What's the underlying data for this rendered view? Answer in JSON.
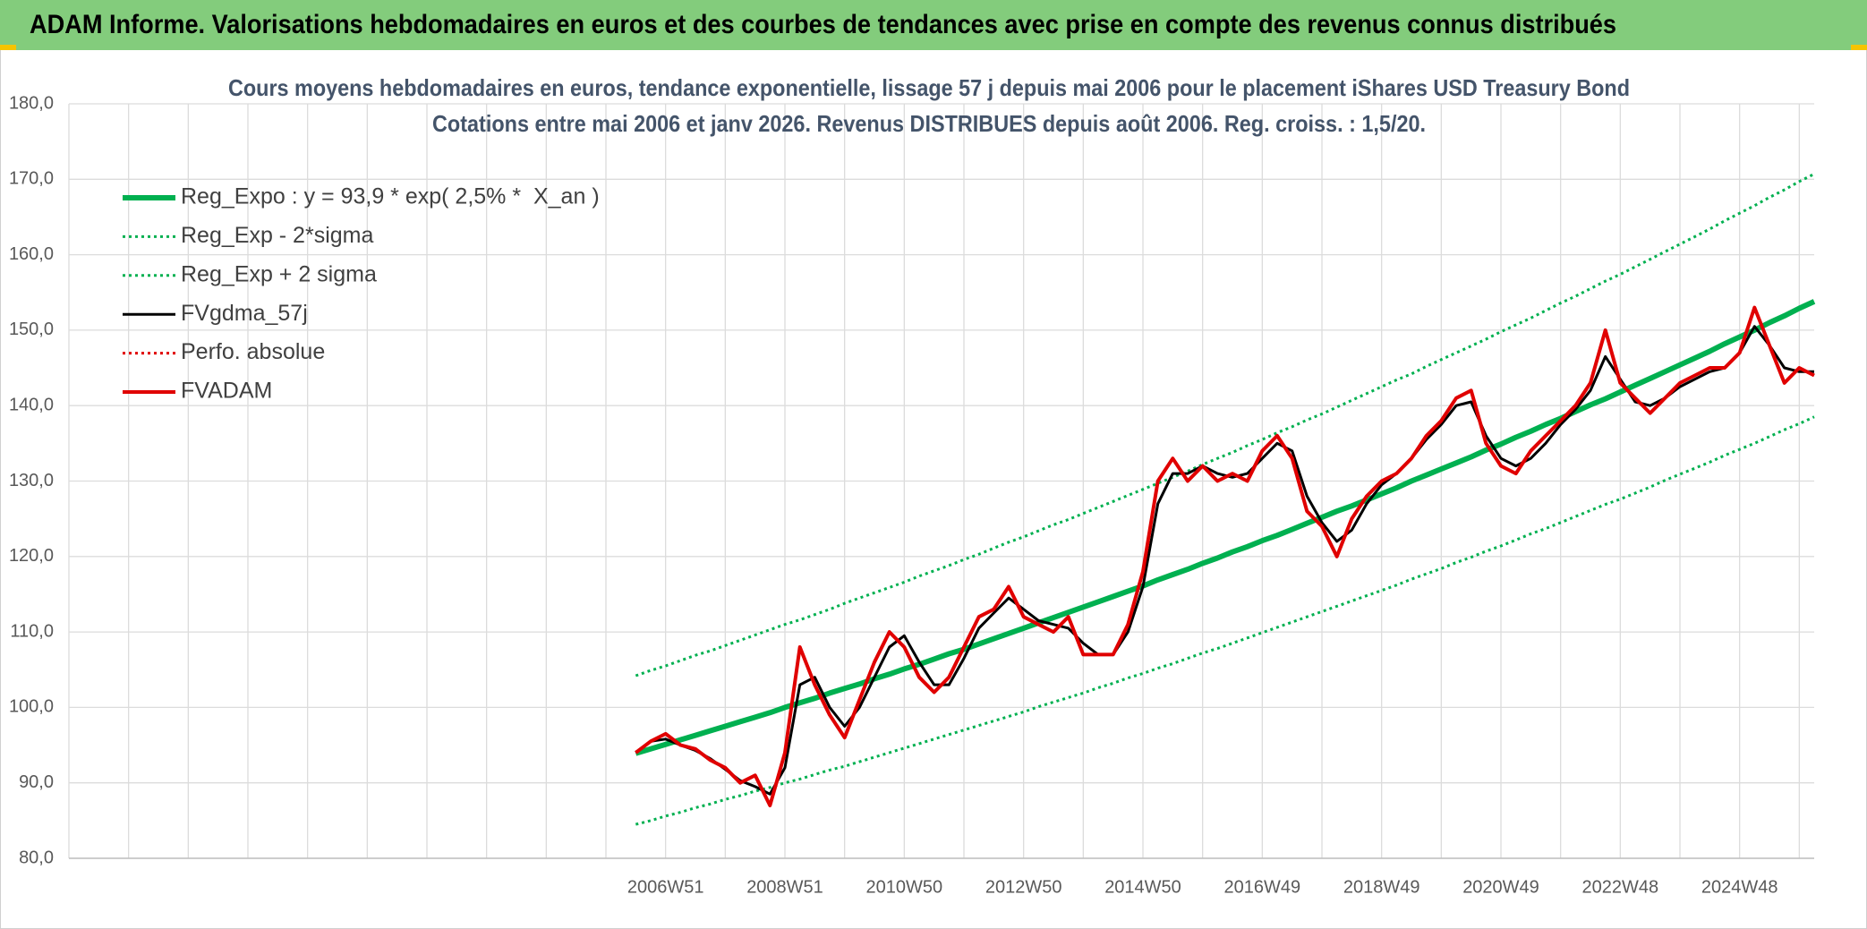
{
  "header": {
    "title": "ADAM Informe. Valorisations hebdomadaires en euros et des courbes de tendances avec prise en compte des revenus connus distribués"
  },
  "chart_data": {
    "type": "line",
    "title": "Cours moyens hebdomadaires en euros, tendance exponentielle, lissage 57 j depuis mai 2006 pour le placement iShares USD Treasury Bond",
    "subtitle": "Cotations entre mai 2006 et janv 2026. Revenus DISTRIBUES depuis août 2006. Reg. croiss. : 1,5/20.",
    "categories": [
      null,
      null,
      null,
      null,
      null,
      null,
      null,
      null,
      null,
      null,
      null,
      null,
      null,
      null,
      null,
      null,
      null,
      null,
      null,
      null,
      null,
      null,
      null,
      null,
      null,
      null,
      null,
      null,
      null,
      null,
      null,
      null,
      null,
      null,
      null,
      null,
      null,
      null,
      null,
      null,
      "2006W51",
      null,
      null,
      null,
      null,
      null,
      null,
      null,
      "2008W51",
      null,
      null,
      null,
      null,
      null,
      null,
      null,
      "2010W50",
      null,
      null,
      null,
      null,
      null,
      null,
      null,
      "2012W50",
      null,
      null,
      null,
      null,
      null,
      null,
      null,
      "2014W50",
      null,
      null,
      null,
      null,
      null,
      null,
      null,
      "2016W49",
      null,
      null,
      null,
      null,
      null,
      null,
      null,
      "2018W49",
      null,
      null,
      null,
      null,
      null,
      null,
      null,
      "2020W49",
      null,
      null,
      null,
      null,
      null,
      null,
      null,
      "2022W48",
      null,
      null,
      null,
      null,
      null,
      null,
      null,
      "2024W48",
      null,
      null,
      null,
      null,
      null
    ],
    "ylim": [
      80,
      180
    ],
    "yticks": [
      {
        "value": 80,
        "label": "80,0"
      },
      {
        "value": 90,
        "label": "90,0"
      },
      {
        "value": 100,
        "label": "100,0"
      },
      {
        "value": 110,
        "label": "110,0"
      },
      {
        "value": 120,
        "label": "120,0"
      },
      {
        "value": 130,
        "label": "130,0"
      },
      {
        "value": 140,
        "label": "140,0"
      },
      {
        "value": 150,
        "label": "150,0"
      },
      {
        "value": 160,
        "label": "160,0"
      },
      {
        "value": 170,
        "label": "170,0"
      },
      {
        "value": 180,
        "label": "180,0"
      }
    ],
    "grid": true,
    "legend": "top-left",
    "series": [
      {
        "name": "Reg_Expo : y = 93,9 * exp( 2,5% *  X_an )",
        "color": "#00b050",
        "width": 6,
        "dotted": false,
        "values": [
          null,
          null,
          null,
          null,
          null,
          null,
          null,
          null,
          null,
          null,
          null,
          null,
          null,
          null,
          null,
          null,
          null,
          null,
          null,
          null,
          null,
          null,
          null,
          null,
          null,
          null,
          null,
          null,
          null,
          null,
          null,
          null,
          null,
          null,
          null,
          null,
          null,
          null,
          93.9,
          94.5,
          95.1,
          95.7,
          96.3,
          96.9,
          97.5,
          98.1,
          98.7,
          99.3,
          100.0,
          100.6,
          101.2,
          101.9,
          102.5,
          103.1,
          103.8,
          104.4,
          105.1,
          105.7,
          106.4,
          107.1,
          107.7,
          108.4,
          109.1,
          109.8,
          110.5,
          111.2,
          111.9,
          112.6,
          113.3,
          114.0,
          114.7,
          115.4,
          116.1,
          116.9,
          117.6,
          118.3,
          119.1,
          119.8,
          120.6,
          121.3,
          122.1,
          122.8,
          123.6,
          124.4,
          125.2,
          126.0,
          126.7,
          127.5,
          128.3,
          129.1,
          130.0,
          130.8,
          131.6,
          132.4,
          133.2,
          134.1,
          134.9,
          135.8,
          136.6,
          137.5,
          138.3,
          139.2,
          140.1,
          140.9,
          141.8,
          142.7,
          143.6,
          144.5,
          145.4,
          146.3,
          147.2,
          148.2,
          149.1,
          150.0,
          151.0,
          151.9,
          152.9,
          153.8
        ]
      },
      {
        "name": "Reg_Exp - 2*sigma",
        "color": "#00b050",
        "width": 3,
        "dotted": true,
        "values": [
          null,
          null,
          null,
          null,
          null,
          null,
          null,
          null,
          null,
          null,
          null,
          null,
          null,
          null,
          null,
          null,
          null,
          null,
          null,
          null,
          null,
          null,
          null,
          null,
          null,
          null,
          null,
          null,
          null,
          null,
          null,
          null,
          null,
          null,
          null,
          null,
          null,
          null,
          84.5,
          85.0,
          85.6,
          86.1,
          86.7,
          87.2,
          87.8,
          88.3,
          88.9,
          89.4,
          90.0,
          90.5,
          91.1,
          91.7,
          92.2,
          92.8,
          93.4,
          94.0,
          94.6,
          95.2,
          95.8,
          96.4,
          97.0,
          97.6,
          98.2,
          98.8,
          99.4,
          100.1,
          100.7,
          101.3,
          101.9,
          102.6,
          103.2,
          103.9,
          104.5,
          105.2,
          105.8,
          106.5,
          107.2,
          107.8,
          108.5,
          109.2,
          109.9,
          110.6,
          111.3,
          112.0,
          112.7,
          113.4,
          114.1,
          114.8,
          115.5,
          116.2,
          117.0,
          117.7,
          118.4,
          119.2,
          119.9,
          120.7,
          121.4,
          122.2,
          123.0,
          123.7,
          124.5,
          125.3,
          126.1,
          126.9,
          127.6,
          128.4,
          129.2,
          130.1,
          130.9,
          131.7,
          132.5,
          133.4,
          134.2,
          135.0,
          135.9,
          136.8,
          137.6,
          138.5
        ]
      },
      {
        "name": "Reg_Exp + 2 sigma",
        "color": "#00b050",
        "width": 3,
        "dotted": true,
        "values": [
          null,
          null,
          null,
          null,
          null,
          null,
          null,
          null,
          null,
          null,
          null,
          null,
          null,
          null,
          null,
          null,
          null,
          null,
          null,
          null,
          null,
          null,
          null,
          null,
          null,
          null,
          null,
          null,
          null,
          null,
          null,
          null,
          null,
          null,
          null,
          null,
          null,
          null,
          104.2,
          104.9,
          105.5,
          106.2,
          106.9,
          107.5,
          108.2,
          108.9,
          109.6,
          110.3,
          111.0,
          111.6,
          112.3,
          113.0,
          113.8,
          114.5,
          115.2,
          115.9,
          116.6,
          117.4,
          118.1,
          118.8,
          119.6,
          120.3,
          121.1,
          121.9,
          122.6,
          123.4,
          124.2,
          124.9,
          125.7,
          126.5,
          127.3,
          128.1,
          128.9,
          129.7,
          130.5,
          131.3,
          132.2,
          133.0,
          133.8,
          134.7,
          135.5,
          136.4,
          137.2,
          138.1,
          138.9,
          139.8,
          140.7,
          141.6,
          142.5,
          143.4,
          144.2,
          145.2,
          146.1,
          147.0,
          147.9,
          148.8,
          149.8,
          150.7,
          151.6,
          152.6,
          153.6,
          154.5,
          155.5,
          156.5,
          157.4,
          158.4,
          159.4,
          160.4,
          161.4,
          162.4,
          163.4,
          164.5,
          165.5,
          166.5,
          167.6,
          168.6,
          169.7,
          170.7
        ]
      },
      {
        "name": "FVgdma_57j",
        "color": "#000000",
        "width": 3,
        "dotted": false,
        "values": [
          null,
          null,
          null,
          null,
          null,
          null,
          null,
          null,
          null,
          null,
          null,
          null,
          null,
          null,
          null,
          null,
          null,
          null,
          null,
          null,
          null,
          null,
          null,
          null,
          null,
          null,
          null,
          null,
          null,
          null,
          null,
          null,
          null,
          null,
          null,
          null,
          null,
          null,
          94,
          95.5,
          95.8,
          95,
          94.3,
          93.2,
          91.8,
          90.3,
          89.5,
          88.5,
          92,
          103,
          104,
          100,
          97.5,
          100,
          104,
          108,
          109.5,
          106,
          103,
          103,
          106.5,
          110.5,
          112.5,
          114.5,
          113,
          111.5,
          111,
          110.5,
          108.5,
          107,
          107,
          110,
          116,
          127,
          131,
          131,
          132,
          131,
          130.5,
          131,
          133,
          135,
          134,
          128,
          124.5,
          122,
          123.5,
          127,
          129.5,
          131,
          133,
          135.5,
          137.5,
          140,
          140.5,
          136,
          133,
          132,
          133,
          135,
          137.5,
          139.5,
          142,
          146.5,
          143.5,
          140.5,
          140,
          141,
          142.5,
          143.5,
          144.5,
          145,
          147,
          150.5,
          148,
          145,
          144.5,
          144.5
        ]
      },
      {
        "name": "Perfo. absolue",
        "color": "#e00000",
        "width": 3,
        "dotted": true,
        "values": [
          null,
          null,
          null,
          null,
          null,
          null,
          null,
          null,
          null,
          null,
          null,
          null,
          null,
          null,
          null,
          null,
          null,
          null,
          null,
          null,
          null,
          null,
          null,
          null,
          null,
          null,
          null,
          null,
          null,
          null,
          null,
          null,
          null,
          null,
          null,
          null,
          null,
          null,
          null,
          null,
          null,
          null,
          null,
          null,
          null,
          null,
          null,
          null,
          null,
          null,
          null,
          null,
          null,
          null,
          null,
          null,
          null,
          null,
          null,
          null,
          null,
          null,
          null,
          null,
          null,
          null,
          null,
          null,
          null,
          null,
          null,
          null,
          null,
          null,
          null,
          null,
          null,
          null,
          null,
          null,
          null,
          null,
          null,
          null,
          null,
          null,
          null,
          null,
          null,
          null,
          null,
          null,
          null,
          null,
          null,
          null,
          null,
          null,
          null,
          null,
          null,
          null,
          null,
          null,
          null,
          null,
          null,
          null,
          null,
          null,
          null,
          null,
          null,
          null,
          null,
          null,
          null,
          null
        ]
      },
      {
        "name": "FVADAM",
        "color": "#e00000",
        "width": 4,
        "dotted": false,
        "values": [
          null,
          null,
          null,
          null,
          null,
          null,
          null,
          null,
          null,
          null,
          null,
          null,
          null,
          null,
          null,
          null,
          null,
          null,
          null,
          null,
          null,
          null,
          null,
          null,
          null,
          null,
          null,
          null,
          null,
          null,
          null,
          null,
          null,
          null,
          null,
          null,
          null,
          null,
          94,
          95.5,
          96.5,
          95,
          94.5,
          93,
          92,
          90,
          91,
          87,
          94,
          108,
          103,
          99,
          96,
          101,
          106,
          110,
          108,
          104,
          102,
          104,
          108,
          112,
          113,
          116,
          112,
          111,
          110,
          112,
          107,
          107,
          107,
          111,
          118,
          130,
          133,
          130,
          132,
          130,
          131,
          130,
          134,
          136,
          133,
          126,
          124,
          120,
          125,
          128,
          130,
          131,
          133,
          136,
          138,
          141,
          142,
          135,
          132,
          131,
          134,
          136,
          138,
          140,
          143,
          150,
          143,
          141,
          139,
          141,
          143,
          144,
          145,
          145,
          147,
          153,
          148,
          143,
          145,
          144
        ]
      }
    ]
  }
}
